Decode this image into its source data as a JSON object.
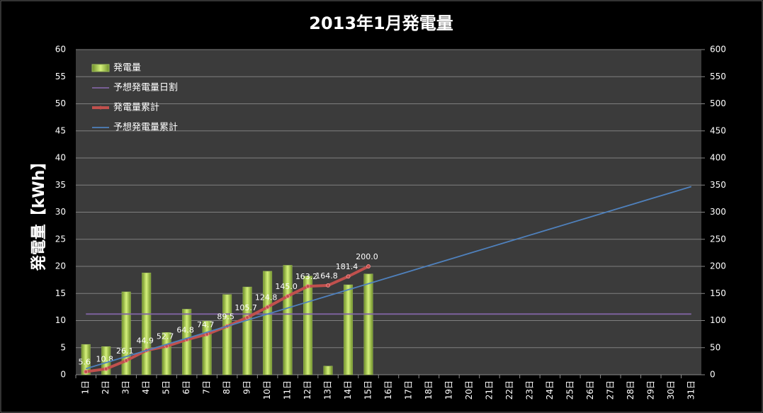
{
  "chart_data": {
    "type": "bar",
    "title": "2013年1月発電量",
    "y_label": "発電量【kWh】",
    "categories": [
      "1日",
      "2日",
      "3日",
      "4日",
      "5日",
      "6日",
      "7日",
      "8日",
      "9日",
      "10日",
      "11日",
      "12日",
      "13日",
      "14日",
      "15日",
      "16日",
      "17日",
      "18日",
      "19日",
      "20日",
      "21日",
      "22日",
      "23日",
      "24日",
      "25日",
      "26日",
      "27日",
      "28日",
      "29日",
      "30日",
      "31日"
    ],
    "series": [
      {
        "name": "発電量",
        "type": "bar",
        "color": "#9bbb59",
        "values": [
          5.6,
          5.2,
          15.3,
          18.8,
          7.8,
          12.1,
          9.9,
          14.8,
          16.2,
          19.1,
          20.2,
          18.2,
          1.6,
          16.6,
          18.6,
          null,
          null,
          null,
          null,
          null,
          null,
          null,
          null,
          null,
          null,
          null,
          null,
          null,
          null,
          null,
          null
        ]
      },
      {
        "name": "予想発電量日割",
        "type": "line",
        "color": "#8064a2",
        "values": [
          11.2,
          11.2,
          11.2,
          11.2,
          11.2,
          11.2,
          11.2,
          11.2,
          11.2,
          11.2,
          11.2,
          11.2,
          11.2,
          11.2,
          11.2,
          11.2,
          11.2,
          11.2,
          11.2,
          11.2,
          11.2,
          11.2,
          11.2,
          11.2,
          11.2,
          11.2,
          11.2,
          11.2,
          11.2,
          11.2,
          11.2
        ]
      },
      {
        "name": "発電量累計",
        "type": "line",
        "axis": "y2",
        "color": "#c0504d",
        "marker": true,
        "values": [
          5.6,
          10.8,
          26.1,
          44.9,
          52.7,
          64.8,
          74.7,
          89.5,
          105.7,
          124.8,
          145,
          163.2,
          164.8,
          181.4,
          200,
          null,
          null,
          null,
          null,
          null,
          null,
          null,
          null,
          null,
          null,
          null,
          null,
          null,
          null,
          null,
          null
        ],
        "value_labels": [
          "5.6",
          "10.8",
          "26.1",
          "44.9",
          "52.7",
          "64.8",
          "74.7",
          "89.5",
          "105.7",
          "124.8",
          "145.0",
          "163.2",
          "164.8",
          "181.4",
          "200.0",
          null,
          null,
          null,
          null,
          null,
          null,
          null,
          null,
          null,
          null,
          null,
          null,
          null,
          null,
          null,
          null
        ]
      },
      {
        "name": "予想発電量累計",
        "type": "line",
        "axis": "y2",
        "color": "#4f81bd",
        "values": [
          11.2,
          22.4,
          33.6,
          44.8,
          56,
          67.2,
          78.4,
          89.6,
          100.8,
          112,
          123.2,
          134.4,
          145.6,
          156.8,
          168,
          179.2,
          190.4,
          201.6,
          212.8,
          224,
          235.2,
          246.4,
          257.6,
          268.8,
          280,
          291.2,
          302.4,
          313.6,
          324.8,
          336,
          347.2
        ]
      }
    ],
    "ylim": [
      0,
      60
    ],
    "yticks": [
      0,
      5,
      10,
      15,
      20,
      25,
      30,
      35,
      40,
      45,
      50,
      55,
      60
    ],
    "y2lim": [
      0,
      600
    ],
    "y2ticks": [
      0,
      50,
      100,
      150,
      200,
      250,
      300,
      350,
      400,
      450,
      500,
      550,
      600
    ],
    "grid": true,
    "legend": "upper-left"
  }
}
